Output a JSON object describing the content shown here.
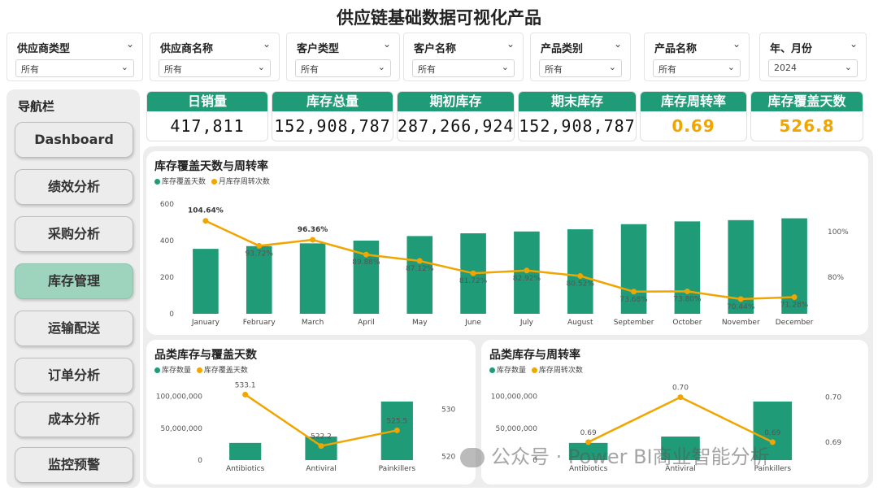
{
  "title": "供应链基础数据可视化产品",
  "filters": [
    {
      "label": "供应商类型",
      "value": "所有"
    },
    {
      "label": "供应商名称",
      "value": "所有"
    },
    {
      "label": "客户类型",
      "value": "所有"
    },
    {
      "label": "客户名称",
      "value": "所有"
    },
    {
      "label": "产品类别",
      "value": "所有"
    },
    {
      "label": "产品名称",
      "value": "所有"
    },
    {
      "label": "年、月份",
      "value": "2024"
    }
  ],
  "nav": {
    "title": "导航栏",
    "items": [
      "Dashboard",
      "绩效分析",
      "采购分析",
      "库存管理",
      "运输配送",
      "订单分析",
      "成本分析",
      "监控预警"
    ],
    "active_index": 3
  },
  "kpis": [
    {
      "label": "日销量",
      "value": "417,811"
    },
    {
      "label": "库存总量",
      "value": "152,908,787"
    },
    {
      "label": "期初库存",
      "value": "287,266,924"
    },
    {
      "label": "期末库存",
      "value": "152,908,787"
    },
    {
      "label": "库存周转率",
      "value": "0.69"
    },
    {
      "label": "库存覆盖天数",
      "value": "526.8"
    }
  ],
  "colors": {
    "green": "#1f9b77",
    "orange": "#f0a500",
    "active_nav": "#9ed3bd"
  },
  "chart_data": [
    {
      "type": "bar+line",
      "title": "库存覆盖天数与周转率",
      "legend": [
        "库存覆盖天数",
        "月库存周转次数"
      ],
      "categories": [
        "January",
        "February",
        "March",
        "April",
        "May",
        "June",
        "July",
        "August",
        "September",
        "October",
        "November",
        "December"
      ],
      "bar_values": [
        355,
        370,
        385,
        400,
        425,
        440,
        450,
        462,
        490,
        505,
        512,
        522
      ],
      "line_values": [
        104.64,
        93.72,
        96.36,
        89.88,
        87.12,
        81.72,
        82.92,
        80.52,
        73.68,
        73.8,
        70.44,
        71.28
      ],
      "line_labels": [
        "104.64%",
        "93.72%",
        "96.36%",
        "89.88%",
        "87.12%",
        "81.72%",
        "82.92%",
        "80.52%",
        "73.68%",
        "73.80%",
        "70.44%",
        "71.28%"
      ],
      "y_ticks": [
        "600",
        "400",
        "200",
        "0"
      ],
      "ylim": [
        0,
        600
      ],
      "y2_ticks": [
        "100%",
        "80%"
      ],
      "y2lim": [
        64,
        112
      ]
    },
    {
      "type": "bar+line",
      "title": "品类库存与覆盖天数",
      "legend": [
        "库存数量",
        "库存覆盖天数"
      ],
      "categories": [
        "Antibiotics",
        "Antiviral",
        "Painkillers"
      ],
      "bar_values": [
        27000000,
        37000000,
        92000000
      ],
      "line_values": [
        533.1,
        522.2,
        525.5
      ],
      "line_labels": [
        "533.1",
        "522.2",
        "525.5"
      ],
      "y_ticks": [
        "100,000,000",
        "50,000,000",
        "0"
      ],
      "ylim": [
        0,
        120000000
      ],
      "y2_ticks": [
        "530",
        "520"
      ],
      "y2lim": [
        519.2,
        535.4
      ]
    },
    {
      "type": "bar+line",
      "title": "品类库存与周转率",
      "legend": [
        "库存数量",
        "库存周转次数"
      ],
      "categories": [
        "Antibiotics",
        "Antiviral",
        "Painkillers"
      ],
      "bar_values": [
        27000000,
        37000000,
        92000000
      ],
      "line_values": [
        0.69,
        0.7,
        0.69
      ],
      "line_labels": [
        "0.69",
        "0.70",
        "0.69"
      ],
      "y_ticks": [
        "100,000,000",
        "50,000,000",
        "0"
      ],
      "ylim": [
        0,
        120000000
      ],
      "y2_ticks": [
        "0.70",
        "0.69"
      ],
      "y2lim": [
        0.686,
        0.703
      ]
    }
  ],
  "watermark": "公众号 · Power BI商业智能分析"
}
